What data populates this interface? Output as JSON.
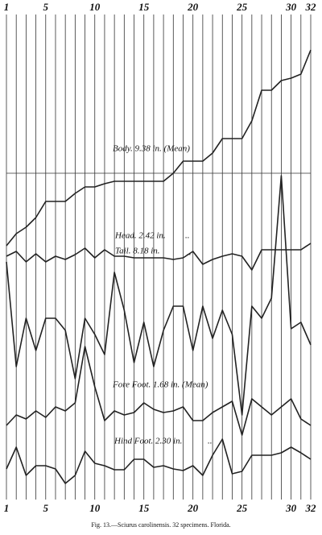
{
  "chart_data": {
    "type": "line",
    "caption": "Fig. 13.—Sciurus carolinensis. 32 specimens. Florida.",
    "x": [
      1,
      2,
      3,
      4,
      5,
      6,
      7,
      8,
      9,
      10,
      11,
      12,
      13,
      14,
      15,
      16,
      17,
      18,
      19,
      20,
      21,
      22,
      23,
      24,
      25,
      26,
      27,
      28,
      29,
      30,
      31,
      32
    ],
    "xlim": [
      1,
      32
    ],
    "xticks": [
      1,
      5,
      10,
      15,
      20,
      25,
      30,
      32
    ],
    "ylim": [
      664,
      0
    ],
    "annotations": [
      {
        "text": "Body. 9.38 in. (Mean)"
      },
      {
        "text": "Head. 2.42 in."
      },
      {
        "text": ".."
      },
      {
        "text": "Tail. 8.18 in."
      },
      {
        "text": ".."
      },
      {
        "text": "Fore Foot. 1.68 in. (Mean)"
      },
      {
        "text": "Hind Foot. 2.30 in."
      },
      {
        "text": ".."
      }
    ],
    "series": [
      {
        "name": "Body",
        "color": "#222",
        "values": [
          305,
          290,
          282,
          270,
          250,
          250,
          250,
          240,
          232,
          232,
          228,
          225,
          225,
          225,
          225,
          225,
          225,
          215,
          200,
          200,
          200,
          190,
          172,
          172,
          172,
          150,
          112,
          112,
          100,
          97,
          92,
          62
        ]
      },
      {
        "name": "Head",
        "color": "#222",
        "values": [
          318,
          312,
          325,
          315,
          325,
          318,
          322,
          316,
          308,
          320,
          310,
          318,
          318,
          320,
          320,
          320,
          320,
          322,
          320,
          312,
          328,
          322,
          318,
          315,
          318,
          335,
          310,
          310,
          310,
          310,
          310,
          302
        ]
      },
      {
        "name": "Tail",
        "color": "#222",
        "values": [
          325,
          455,
          395,
          435,
          395,
          395,
          410,
          470,
          395,
          415,
          440,
          338,
          385,
          450,
          400,
          455,
          410,
          380,
          380,
          435,
          380,
          420,
          385,
          415,
          515,
          380,
          395,
          370,
          218,
          408,
          400,
          428
        ]
      },
      {
        "name": "Fore Foot",
        "color": "#222",
        "values": [
          528,
          515,
          520,
          510,
          518,
          505,
          510,
          500,
          430,
          480,
          522,
          510,
          515,
          512,
          500,
          508,
          512,
          510,
          505,
          522,
          522,
          512,
          505,
          498,
          540,
          495,
          505,
          515,
          505,
          495,
          520,
          528
        ]
      },
      {
        "name": "Hind Foot",
        "color": "#222",
        "values": [
          582,
          555,
          590,
          578,
          578,
          582,
          600,
          590,
          560,
          575,
          578,
          583,
          583,
          570,
          570,
          580,
          578,
          582,
          584,
          578,
          590,
          565,
          545,
          588,
          585,
          565,
          565,
          565,
          562,
          555,
          562,
          570
        ]
      }
    ]
  }
}
